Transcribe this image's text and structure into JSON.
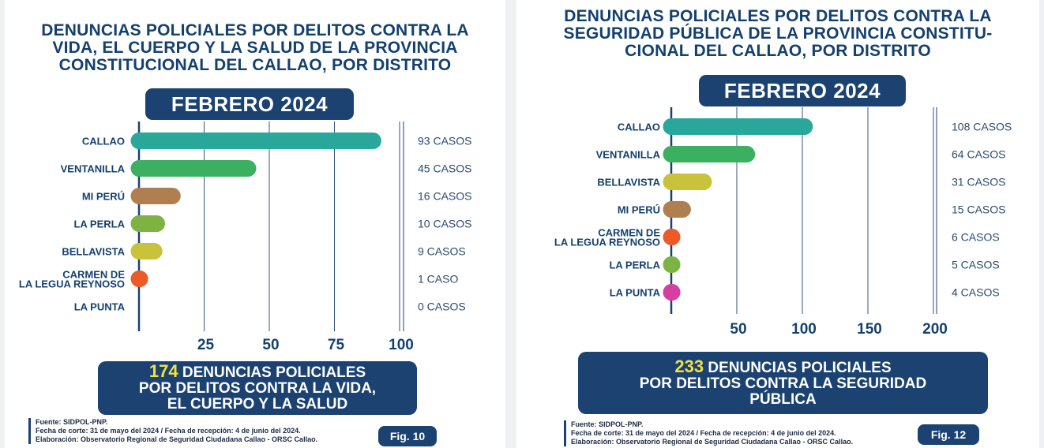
{
  "chart_data": [
    {
      "type": "bar",
      "orientation": "horizontal",
      "title_lines": [
        "DENUNCIAS POLICIALES POR DELITOS CONTRA LA",
        "VIDA, EL CUERPO Y LA SALUD DE LA PROVINCIA",
        "CONSTITUCIONAL DEL CALLAO, POR DISTRITO"
      ],
      "period": "FEBRERO 2024",
      "categories": [
        [
          "CALLAO"
        ],
        [
          "VENTANILLA"
        ],
        [
          "MI PERÚ"
        ],
        [
          "LA PERLA"
        ],
        [
          "BELLAVISTA"
        ],
        [
          "CARMEN DE",
          "LA LEGUA REYNOSO"
        ],
        [
          "LA PUNTA"
        ]
      ],
      "values": [
        93,
        45,
        16,
        10,
        9,
        1,
        0
      ],
      "value_labels": [
        "93 CASOS",
        "45 CASOS",
        "16 CASOS",
        "10 CASOS",
        "9 CASOS",
        "1 CASO",
        "0 CASOS"
      ],
      "colors": [
        "#2aa79b",
        "#3bb060",
        "#b07f4f",
        "#7cb342",
        "#c8c33a",
        "#ec5a28",
        "#cccccc"
      ],
      "xlim": [
        0,
        100
      ],
      "ticks": [
        25,
        50,
        75,
        100
      ],
      "tick_labels": [
        "25",
        "50",
        "75",
        "100"
      ],
      "summary": {
        "number": "174",
        "line1_rest": " DENUNCIAS POLICIALES",
        "line2": "POR DELITOS CONTRA  LA VIDA,",
        "line3": "EL CUERPO Y LA SALUD"
      },
      "source": [
        "Fuente: SIDPOL-PNP.",
        "Fecha de corte: 31 de mayo del 2024 / Fecha de recepción: 4 de junio del 2024.",
        "Elaboración: Observatorio Regional de Seguridad Ciudadana Callao - ORSC Callao."
      ],
      "figure_label": "Fig. 10"
    },
    {
      "type": "bar",
      "orientation": "horizontal",
      "title_lines": [
        "DENUNCIAS POLICIALES POR DELITOS CONTRA LA",
        "SEGURIDAD PÚBLICA DE LA PROVINCIA CONSTITU-",
        "CIONAL DEL CALLAO, POR DISTRITO"
      ],
      "period": "FEBRERO 2024",
      "categories": [
        [
          "CALLAO"
        ],
        [
          "VENTANILLA"
        ],
        [
          "BELLAVISTA"
        ],
        [
          "MI PERÚ"
        ],
        [
          "CARMEN DE",
          "LA LEGUA REYNOSO"
        ],
        [
          "LA PERLA"
        ],
        [
          "LA PUNTA"
        ]
      ],
      "values": [
        108,
        64,
        31,
        15,
        6,
        5,
        4
      ],
      "value_labels": [
        "108 CASOS",
        "64 CASOS",
        "31 CASOS",
        "15 CASOS",
        "6 CASOS",
        "5 CASOS",
        "4 CASOS"
      ],
      "colors": [
        "#2aa79b",
        "#3bb060",
        "#c8c33a",
        "#b07f4f",
        "#ec5a28",
        "#7cb342",
        "#d63fa0"
      ],
      "xlim": [
        0,
        200
      ],
      "ticks": [
        50,
        100,
        150,
        200
      ],
      "tick_labels": [
        "50",
        "100",
        "150",
        "200"
      ],
      "summary": {
        "number": "233",
        "line1_rest": " DENUNCIAS POLICIALES",
        "line2": "POR DELITOS CONTRA LA SEGURIDAD",
        "line3": "PÚBLICA"
      },
      "source": [
        "Fuente: SIDPOL-PNP.",
        "Fecha de corte: 31 de mayo del 2024 / Fecha de recepción: 4 de junio del 2024.",
        "Elaboración: Observatorio Regional de Seguridad Ciudadana Callao - ORSC Callao."
      ],
      "figure_label": "Fig. 12"
    }
  ]
}
